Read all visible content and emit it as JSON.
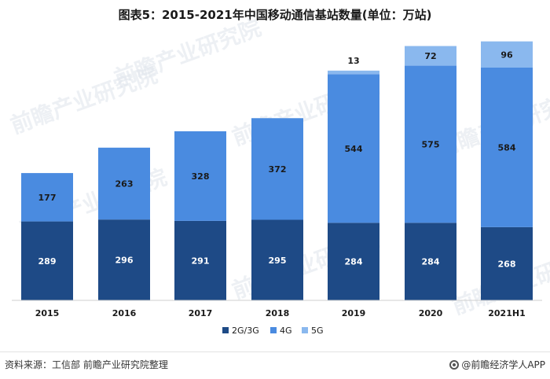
{
  "title": "图表5：2015-2021年中国移动通信基站数量(单位：万站)",
  "chart_data": {
    "type": "bar",
    "stacked": true,
    "title": "图表5：2015-2021年中国移动通信基站数量(单位：万站)",
    "unit": "万站",
    "categories": [
      "2015",
      "2016",
      "2017",
      "2018",
      "2019",
      "2020",
      "2021H1"
    ],
    "series": [
      {
        "name": "2G/3G",
        "values": [
          289,
          296,
          291,
          295,
          284,
          284,
          268
        ],
        "color": "#1e4a86",
        "label_color": "#ffffff"
      },
      {
        "name": "4G",
        "values": [
          177,
          263,
          328,
          372,
          544,
          575,
          584
        ],
        "color": "#4a8be0",
        "label_color": "#1a1a1a"
      },
      {
        "name": "5G",
        "values": [
          null,
          null,
          null,
          null,
          13,
          72,
          96
        ],
        "color": "#8ab8ee",
        "label_color": "#1a1a1a"
      }
    ],
    "ylim": [
      0,
      970
    ],
    "legend_position": "bottom-center",
    "grid": false
  },
  "watermark": "前瞻产业研究院",
  "footer": {
    "source": "资料来源：工信部 前瞻产业研究院整理",
    "brand": "@前瞻经济学人APP"
  }
}
